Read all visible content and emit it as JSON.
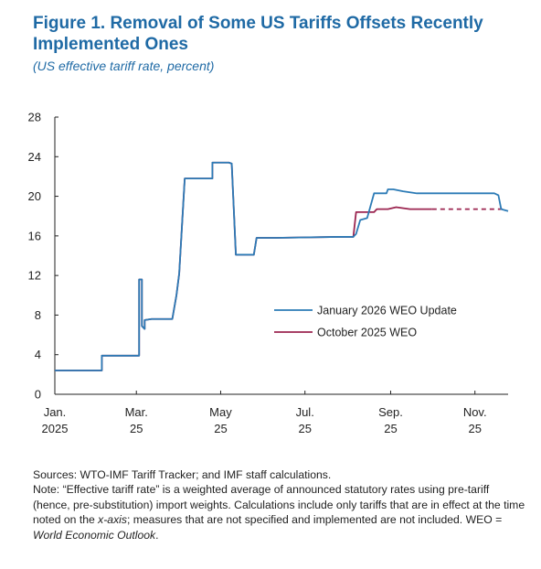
{
  "figure": {
    "title": "Figure 1.  Removal of Some US Tariffs Offsets Recently Implemented Ones",
    "subtitle": "(US effective tariff rate, percent)"
  },
  "chart_data": {
    "type": "line",
    "title": "Figure 1.  Removal of Some US Tariffs Offsets Recently Implemented Ones",
    "subtitle": "(US effective tariff rate, percent)",
    "ylabel": "",
    "xlabel": "",
    "ylim": [
      0,
      28
    ],
    "yticks": [
      "0",
      "4",
      "8",
      "12",
      "16",
      "20",
      "24",
      "28"
    ],
    "xlim": [
      "2025-01-01",
      "2025-11-25"
    ],
    "xticks": [
      {
        "date": "2025-01-01",
        "line1": "Jan.",
        "line2": "2025"
      },
      {
        "date": "2025-03-01",
        "line1": "Mar.",
        "line2": "25"
      },
      {
        "date": "2025-05-01",
        "line1": "May",
        "line2": "25"
      },
      {
        "date": "2025-07-01",
        "line1": "Jul.",
        "line2": "25"
      },
      {
        "date": "2025-09-01",
        "line1": "Sep.",
        "line2": "25"
      },
      {
        "date": "2025-11-01",
        "line1": "Nov.",
        "line2": "25"
      }
    ],
    "legend_position": "center-right",
    "grid": false,
    "series": [
      {
        "name": "January 2026 WEO Update",
        "color": "#2c7bb6",
        "style": "solid",
        "points": [
          [
            "2025-01-01",
            2.4
          ],
          [
            "2025-01-25",
            2.4
          ],
          [
            "2025-02-04",
            2.4
          ],
          [
            "2025-02-04",
            3.9
          ],
          [
            "2025-03-03",
            3.9
          ],
          [
            "2025-03-03",
            11.6
          ],
          [
            "2025-03-05",
            11.6
          ],
          [
            "2025-03-05",
            6.9
          ],
          [
            "2025-03-07",
            6.6
          ],
          [
            "2025-03-07",
            7.5
          ],
          [
            "2025-03-12",
            7.6
          ],
          [
            "2025-03-27",
            7.6
          ],
          [
            "2025-03-30",
            10.0
          ],
          [
            "2025-04-01",
            12.2
          ],
          [
            "2025-04-05",
            21.8
          ],
          [
            "2025-04-20",
            21.8
          ],
          [
            "2025-04-25",
            21.8
          ],
          [
            "2025-04-25",
            23.4
          ],
          [
            "2025-05-07",
            23.4
          ],
          [
            "2025-05-09",
            23.3
          ],
          [
            "2025-05-12",
            14.1
          ],
          [
            "2025-05-14",
            14.1
          ],
          [
            "2025-05-25",
            14.1
          ],
          [
            "2025-05-27",
            15.8
          ],
          [
            "2025-06-10",
            15.8
          ],
          [
            "2025-07-25",
            15.9
          ],
          [
            "2025-08-05",
            15.9
          ],
          [
            "2025-08-07",
            16.2
          ],
          [
            "2025-08-10",
            17.6
          ],
          [
            "2025-08-15",
            17.8
          ],
          [
            "2025-08-20",
            20.3
          ],
          [
            "2025-08-29",
            20.3
          ],
          [
            "2025-08-30",
            20.7
          ],
          [
            "2025-09-03",
            20.7
          ],
          [
            "2025-09-10",
            20.5
          ],
          [
            "2025-09-20",
            20.3
          ],
          [
            "2025-11-15",
            20.3
          ],
          [
            "2025-11-18",
            20.1
          ],
          [
            "2025-11-20",
            18.7
          ],
          [
            "2025-11-25",
            18.5
          ]
        ]
      },
      {
        "name": "October 2025 WEO",
        "color": "#9b2550",
        "style": "solid",
        "points": [
          [
            "2025-01-01",
            2.4
          ],
          [
            "2025-01-25",
            2.4
          ],
          [
            "2025-02-04",
            2.4
          ],
          [
            "2025-02-04",
            3.9
          ],
          [
            "2025-03-03",
            3.9
          ],
          [
            "2025-03-03",
            11.6
          ],
          [
            "2025-03-05",
            11.6
          ],
          [
            "2025-03-05",
            6.9
          ],
          [
            "2025-03-07",
            6.6
          ],
          [
            "2025-03-07",
            7.5
          ],
          [
            "2025-03-12",
            7.6
          ],
          [
            "2025-03-27",
            7.6
          ],
          [
            "2025-03-30",
            10.0
          ],
          [
            "2025-04-01",
            12.2
          ],
          [
            "2025-04-05",
            21.8
          ],
          [
            "2025-04-20",
            21.8
          ],
          [
            "2025-04-25",
            21.8
          ],
          [
            "2025-04-25",
            23.4
          ],
          [
            "2025-05-07",
            23.4
          ],
          [
            "2025-05-09",
            23.3
          ],
          [
            "2025-05-12",
            14.1
          ],
          [
            "2025-05-14",
            14.1
          ],
          [
            "2025-05-25",
            14.1
          ],
          [
            "2025-05-27",
            15.8
          ],
          [
            "2025-06-10",
            15.8
          ],
          [
            "2025-07-25",
            15.9
          ],
          [
            "2025-08-05",
            15.9
          ],
          [
            "2025-08-07",
            18.4
          ],
          [
            "2025-08-20",
            18.4
          ],
          [
            "2025-08-22",
            18.7
          ],
          [
            "2025-08-30",
            18.7
          ],
          [
            "2025-09-05",
            18.9
          ],
          [
            "2025-09-15",
            18.7
          ],
          [
            "2025-10-01",
            18.7
          ]
        ]
      },
      {
        "name": "",
        "color": "#9b2550",
        "style": "dashed",
        "points": [
          [
            "2025-10-01",
            18.7
          ],
          [
            "2025-11-22",
            18.7
          ]
        ]
      }
    ]
  },
  "legend": {
    "items": [
      {
        "label": "January 2026 WEO Update",
        "color": "#2c7bb6"
      },
      {
        "label": "October 2025 WEO",
        "color": "#9b2550"
      }
    ]
  },
  "notes": {
    "sources": "Sources: WTO-IMF Tariff Tracker; and IMF staff calculations.",
    "note_part1": "Note: “Effective tariff rate” is a weighted average of announced statutory rates using pre-tariff (hence, pre-substitution) import weights. Calculations include only tariffs that are in effect at the time noted on the ",
    "note_axis": "x-axis",
    "note_part2": "; measures that are not specified and implemented are not included. WEO = ",
    "note_weo": "World Economic Outlook",
    "note_end": "."
  }
}
